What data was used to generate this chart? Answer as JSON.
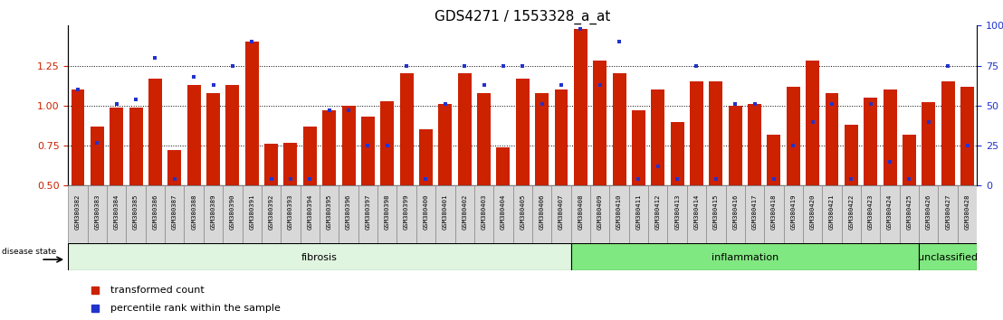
{
  "title": "GDS4271 / 1553328_a_at",
  "samples": [
    "GSM380382",
    "GSM380383",
    "GSM380384",
    "GSM380385",
    "GSM380386",
    "GSM380387",
    "GSM380388",
    "GSM380389",
    "GSM380390",
    "GSM380391",
    "GSM380392",
    "GSM380393",
    "GSM380394",
    "GSM380395",
    "GSM380396",
    "GSM380397",
    "GSM380398",
    "GSM380399",
    "GSM380400",
    "GSM380401",
    "GSM380402",
    "GSM380403",
    "GSM380404",
    "GSM380405",
    "GSM380406",
    "GSM380407",
    "GSM380408",
    "GSM380409",
    "GSM380410",
    "GSM380411",
    "GSM380412",
    "GSM380413",
    "GSM380414",
    "GSM380415",
    "GSM380416",
    "GSM380417",
    "GSM380418",
    "GSM380419",
    "GSM380420",
    "GSM380421",
    "GSM380422",
    "GSM380423",
    "GSM380424",
    "GSM380425",
    "GSM380426",
    "GSM380427",
    "GSM380428"
  ],
  "red_values": [
    1.1,
    0.87,
    0.99,
    0.99,
    1.17,
    0.72,
    1.13,
    1.08,
    1.13,
    1.4,
    0.76,
    0.77,
    0.87,
    0.97,
    1.0,
    0.93,
    1.03,
    1.2,
    0.85,
    1.01,
    1.2,
    1.08,
    0.74,
    1.17,
    1.08,
    1.1,
    1.48,
    1.28,
    1.2,
    0.97,
    1.1,
    0.9,
    1.15,
    1.15,
    1.0,
    1.01,
    0.82,
    1.12,
    1.28,
    1.08,
    0.88,
    1.05,
    1.1,
    0.82,
    1.02,
    1.15,
    1.12
  ],
  "blue_values": [
    1.1,
    0.77,
    1.01,
    1.04,
    1.3,
    0.54,
    1.18,
    1.13,
    1.25,
    1.4,
    0.54,
    0.54,
    0.54,
    0.97,
    0.97,
    0.75,
    0.75,
    1.25,
    0.54,
    1.01,
    1.25,
    1.13,
    1.25,
    1.25,
    1.01,
    1.13,
    1.48,
    1.13,
    1.4,
    0.54,
    0.62,
    0.54,
    1.25,
    0.54,
    1.01,
    1.01,
    0.54,
    0.75,
    0.9,
    1.01,
    0.54,
    1.01,
    0.65,
    0.54,
    0.9,
    1.25,
    0.75
  ],
  "group_ranges": [
    [
      0,
      26,
      "fibrosis",
      "#e0f5e0"
    ],
    [
      26,
      44,
      "inflammation",
      "#80e880"
    ],
    [
      44,
      47,
      "unclassified",
      "#80e880"
    ]
  ],
  "ylim_left": [
    0.5,
    1.5
  ],
  "yticks_left": [
    0.5,
    0.75,
    1.0,
    1.25
  ],
  "grid_values": [
    0.75,
    1.0,
    1.25
  ],
  "yticks_right": [
    0,
    25,
    50,
    75,
    100
  ],
  "bar_color": "#cc2200",
  "dot_color": "#2233cc",
  "title_fontsize": 11
}
